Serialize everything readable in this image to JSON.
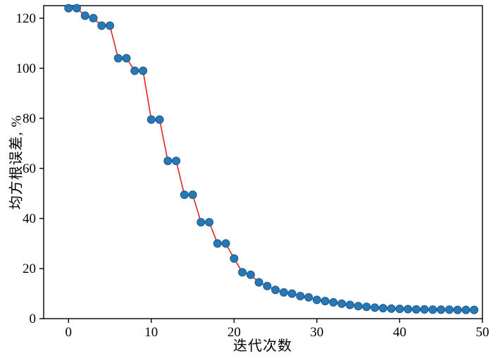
{
  "chart_data": {
    "type": "line",
    "title": "",
    "xlabel": "迭代次数",
    "ylabel": "均方根误差, %",
    "legend": null,
    "grid": false,
    "xlim": [
      -3,
      50
    ],
    "ylim": [
      0,
      125
    ],
    "xticks": [
      0,
      10,
      20,
      30,
      40,
      50
    ],
    "yticks": [
      0,
      20,
      40,
      60,
      80,
      100,
      120
    ],
    "x": [
      0,
      1,
      2,
      3,
      4,
      5,
      6,
      7,
      8,
      9,
      10,
      11,
      12,
      13,
      14,
      15,
      16,
      17,
      18,
      19,
      20,
      21,
      22,
      23,
      24,
      25,
      26,
      27,
      28,
      29,
      30,
      31,
      32,
      33,
      34,
      35,
      36,
      37,
      38,
      39,
      40,
      41,
      42,
      43,
      44,
      45,
      46,
      47,
      48,
      49
    ],
    "y": [
      124,
      124,
      121,
      120,
      117,
      117,
      104,
      104,
      99,
      99,
      79.5,
      79.5,
      63,
      63,
      49.5,
      49.5,
      38.5,
      38.5,
      30,
      30,
      24,
      18.5,
      17.5,
      14.5,
      13,
      11.5,
      10.5,
      10,
      9,
      8.5,
      7.5,
      7,
      6.5,
      6,
      5.5,
      5,
      4.7,
      4.4,
      4.2,
      4,
      3.9,
      3.8,
      3.7,
      3.7,
      3.6,
      3.6,
      3.6,
      3.5,
      3.5,
      3.5
    ],
    "line_color": "#e62222",
    "marker_fill": "#2878b5",
    "marker_edge": "#1a5a8c",
    "marker_radius": 5.5,
    "axis_color": "#000000",
    "background": "#ffffff"
  }
}
